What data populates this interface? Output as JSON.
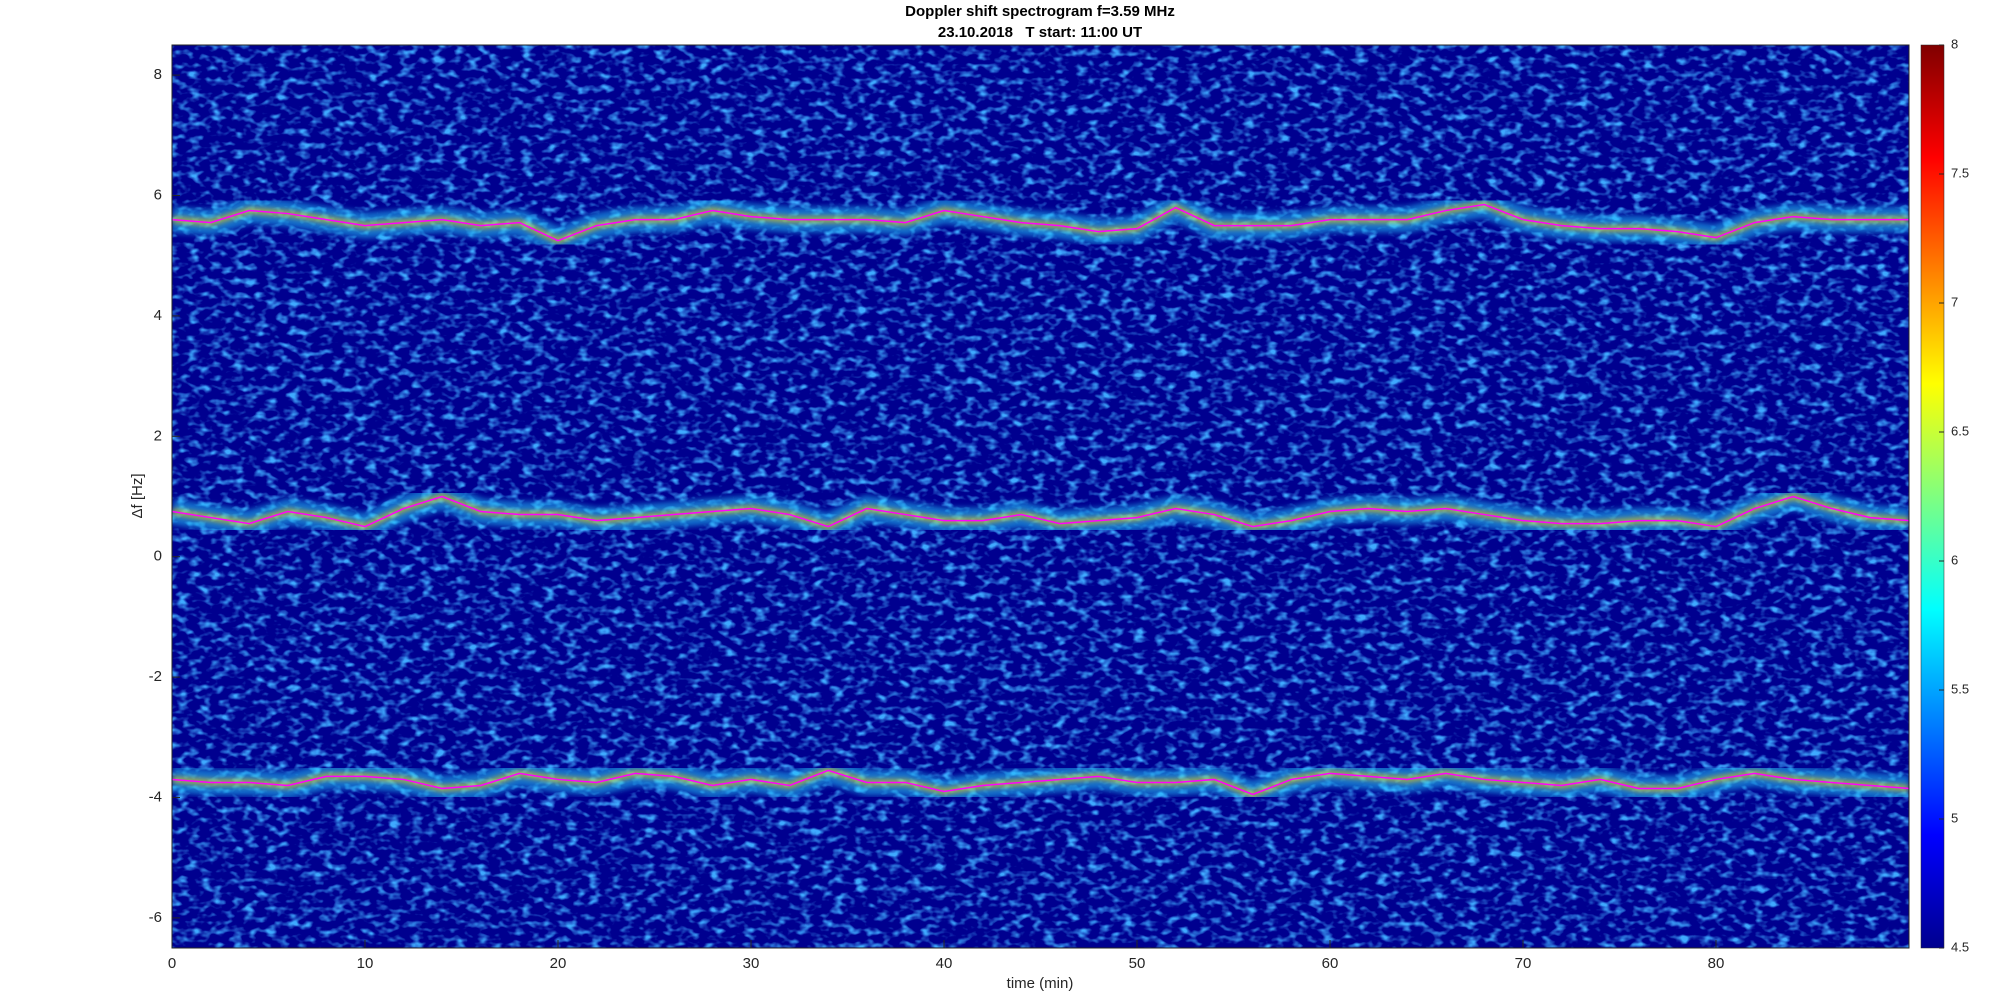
{
  "chart_data": {
    "type": "line",
    "title": "Doppler shift spectrogram f=3.59 MHz",
    "subtitle": "23.10.2018   T start: 11:00 UT",
    "x_label": "time (min)",
    "y_label": "Δf [Hz]",
    "x": [
      0,
      2,
      4,
      6,
      8,
      10,
      12,
      14,
      16,
      18,
      20,
      22,
      24,
      26,
      28,
      30,
      32,
      34,
      36,
      38,
      40,
      42,
      44,
      46,
      48,
      50,
      52,
      54,
      56,
      58,
      60,
      62,
      64,
      66,
      68,
      70,
      72,
      74,
      76,
      78,
      80,
      82,
      84,
      86,
      88,
      90
    ],
    "series": [
      {
        "color": "#ff00ff",
        "values": [
          5.6,
          5.55,
          5.75,
          5.7,
          5.6,
          5.5,
          5.55,
          5.6,
          5.5,
          5.55,
          5.25,
          5.5,
          5.6,
          5.6,
          5.75,
          5.65,
          5.6,
          5.6,
          5.6,
          5.55,
          5.75,
          5.65,
          5.55,
          5.5,
          5.4,
          5.45,
          5.8,
          5.5,
          5.5,
          5.5,
          5.6,
          5.6,
          5.6,
          5.75,
          5.85,
          5.6,
          5.5,
          5.45,
          5.45,
          5.4,
          5.3,
          5.55,
          5.65,
          5.6,
          5.6,
          5.6
        ]
      },
      {
        "color": "#ff00ff",
        "values": [
          0.75,
          0.65,
          0.55,
          0.75,
          0.65,
          0.5,
          0.8,
          1.0,
          0.75,
          0.7,
          0.7,
          0.6,
          0.65,
          0.7,
          0.75,
          0.8,
          0.7,
          0.5,
          0.8,
          0.7,
          0.6,
          0.6,
          0.7,
          0.55,
          0.6,
          0.65,
          0.8,
          0.7,
          0.5,
          0.6,
          0.75,
          0.8,
          0.75,
          0.8,
          0.7,
          0.6,
          0.55,
          0.55,
          0.6,
          0.6,
          0.5,
          0.8,
          1.0,
          0.8,
          0.65,
          0.6
        ]
      },
      {
        "color": "#ff00ff",
        "values": [
          -3.7,
          -3.75,
          -3.75,
          -3.8,
          -3.65,
          -3.65,
          -3.7,
          -3.85,
          -3.8,
          -3.6,
          -3.7,
          -3.75,
          -3.6,
          -3.65,
          -3.8,
          -3.7,
          -3.8,
          -3.55,
          -3.75,
          -3.75,
          -3.9,
          -3.8,
          -3.75,
          -3.7,
          -3.65,
          -3.75,
          -3.75,
          -3.7,
          -3.95,
          -3.7,
          -3.6,
          -3.65,
          -3.7,
          -3.6,
          -3.7,
          -3.75,
          -3.8,
          -3.7,
          -3.85,
          -3.85,
          -3.7,
          -3.6,
          -3.7,
          -3.75,
          -3.8,
          -3.85
        ]
      }
    ],
    "xlim": [
      0,
      90
    ],
    "xticks": [
      0,
      10,
      20,
      30,
      40,
      50,
      60,
      70,
      80
    ],
    "ylim": [
      -6.5,
      8.5
    ],
    "yticks": [
      -6,
      -4,
      -2,
      0,
      2,
      4,
      6,
      8
    ],
    "colormap": "jet",
    "clim": [
      4.5,
      8
    ],
    "cticks": [
      4.5,
      5,
      5.5,
      6,
      6.5,
      7,
      7.5,
      8
    ]
  }
}
